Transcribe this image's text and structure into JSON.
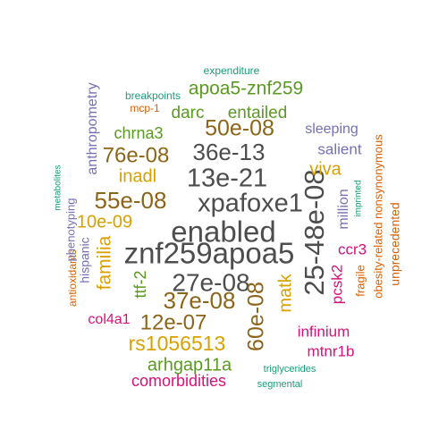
{
  "colors": {
    "dark_gray": "#4d4d4d",
    "brown": "#8c6518",
    "gold": "#d9a100",
    "green": "#5a9a23",
    "teal": "#1b9e77",
    "orange": "#d95f02",
    "purple": "#7570b3",
    "magenta": "#d6117a"
  },
  "words": [
    {
      "text": "enabled",
      "color": "dark_gray"
    },
    {
      "text": "znf259apoa5",
      "color": "dark_gray"
    },
    {
      "text": "xpafoxe1",
      "color": "dark_gray"
    },
    {
      "text": "13e-21",
      "color": "dark_gray"
    },
    {
      "text": "25-48e-08",
      "color": "dark_gray"
    },
    {
      "text": "36e-13",
      "color": "dark_gray"
    },
    {
      "text": "27e-08",
      "color": "dark_gray"
    },
    {
      "text": "50e-08",
      "color": "brown"
    },
    {
      "text": "76e-08",
      "color": "brown"
    },
    {
      "text": "55e-08",
      "color": "brown"
    },
    {
      "text": "37e-08",
      "color": "brown"
    },
    {
      "text": "12e-07",
      "color": "brown"
    },
    {
      "text": "60e-08",
      "color": "brown"
    },
    {
      "text": "10e-09",
      "color": "gold"
    },
    {
      "text": "inadl",
      "color": "gold"
    },
    {
      "text": "viva",
      "color": "gold"
    },
    {
      "text": "familia",
      "color": "gold"
    },
    {
      "text": "matk",
      "color": "gold"
    },
    {
      "text": "rs1056513",
      "color": "gold"
    },
    {
      "text": "apoa5-znf259",
      "color": "green"
    },
    {
      "text": "darc",
      "color": "green"
    },
    {
      "text": "entailed",
      "color": "green"
    },
    {
      "text": "chrna3",
      "color": "green"
    },
    {
      "text": "ttf-2",
      "color": "green"
    },
    {
      "text": "arhgap11a",
      "color": "green"
    },
    {
      "text": "expenditure",
      "color": "teal"
    },
    {
      "text": "breakpoints",
      "color": "teal"
    },
    {
      "text": "metabolites",
      "color": "teal"
    },
    {
      "text": "imprinted",
      "color": "teal"
    },
    {
      "text": "triglycerides",
      "color": "teal"
    },
    {
      "text": "segmental",
      "color": "teal"
    },
    {
      "text": "mcp-1",
      "color": "orange"
    },
    {
      "text": "obesity-related nonsynonymous",
      "color": "orange"
    },
    {
      "text": "unprecedented",
      "color": "orange"
    },
    {
      "text": "antioxidants",
      "color": "orange"
    },
    {
      "text": "fragile",
      "color": "orange"
    },
    {
      "text": "anthropometry",
      "color": "purple"
    },
    {
      "text": "sleeping",
      "color": "purple"
    },
    {
      "text": "salient",
      "color": "purple"
    },
    {
      "text": "phenotyping",
      "color": "purple"
    },
    {
      "text": "hispanic",
      "color": "purple"
    },
    {
      "text": "million",
      "color": "purple"
    },
    {
      "text": "ccr3",
      "color": "magenta"
    },
    {
      "text": "pcsk2",
      "color": "magenta"
    },
    {
      "text": "infinium",
      "color": "magenta"
    },
    {
      "text": "col4a1",
      "color": "magenta"
    },
    {
      "text": "mtnr1b",
      "color": "magenta"
    },
    {
      "text": "comorbidities",
      "color": "magenta"
    }
  ]
}
